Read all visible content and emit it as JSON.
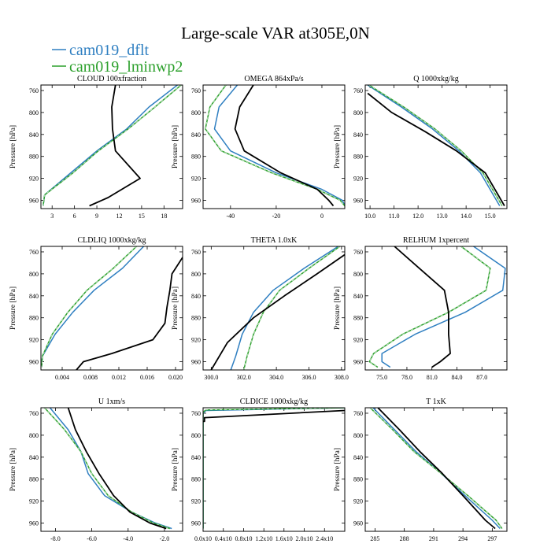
{
  "figure": {
    "title": "Large-scale VAR at305E,0N",
    "legend": [
      {
        "name": "cam019_dflt",
        "color": "#2f7fc1"
      },
      {
        "name": "cam019_lminwp2",
        "color": "#2ca02c"
      }
    ],
    "obs_color": "#000000"
  },
  "chart_data": [
    {
      "type": "line",
      "title": "CLOUD  100xfraction",
      "ylabel": "Pressure [hPa]",
      "xlim": [
        1.5,
        20.5
      ],
      "xticks": [
        3,
        6,
        9,
        12,
        15,
        18
      ],
      "xtick_labels": [
        "3",
        "6",
        "9",
        "12",
        "15",
        "18"
      ],
      "series": [
        {
          "name": "cam019_dflt",
          "x": [
            19.8,
            16.0,
            13.0,
            9.0,
            5.5,
            2.0,
            1.8
          ],
          "y": [
            750,
            790,
            830,
            870,
            910,
            950,
            970
          ]
        },
        {
          "name": "cam019_lminwp2",
          "x": [
            20.3,
            16.8,
            13.2,
            9.2,
            5.8,
            2.0,
            1.8
          ],
          "y": [
            750,
            790,
            830,
            870,
            910,
            950,
            970
          ]
        },
        {
          "name": "",
          "x": [
            11.5,
            11.0,
            11.1,
            11.5,
            14.8,
            10.5,
            8.0
          ],
          "y": [
            750,
            790,
            830,
            870,
            920,
            955,
            970
          ]
        }
      ]
    },
    {
      "type": "line",
      "title": "OMEGA  864xPa/s",
      "ylabel": "Pressure [hPa]",
      "xlim": [
        -52,
        10
      ],
      "xticks": [
        -40,
        -20,
        0
      ],
      "xtick_labels": [
        "-40",
        "-20",
        "0"
      ],
      "series": [
        {
          "name": "cam019_dflt",
          "x": [
            -37,
            -45,
            -47,
            -40,
            -20,
            0,
            9,
            10
          ],
          "y": [
            750,
            790,
            830,
            870,
            910,
            940,
            960,
            970
          ]
        },
        {
          "name": "cam019_lminwp2",
          "x": [
            -42,
            -49,
            -51,
            -44,
            -22,
            -2,
            8,
            10
          ],
          "y": [
            750,
            790,
            830,
            870,
            910,
            940,
            960,
            970
          ]
        },
        {
          "name": "",
          "x": [
            -30,
            -36,
            -38,
            -34,
            -18,
            -2,
            3,
            5
          ],
          "y": [
            750,
            790,
            830,
            870,
            910,
            940,
            960,
            970
          ]
        }
      ]
    },
    {
      "type": "line",
      "title": "Q  1000xkg/kg",
      "ylabel": "Pressure [hPa]",
      "xlim": [
        9.8,
        15.7
      ],
      "xticks": [
        10.0,
        11.0,
        12.0,
        13.0,
        14.0,
        15.0
      ],
      "xtick_labels": [
        "10.0",
        "11.0",
        "12.0",
        "13.0",
        "14.0",
        "15.0"
      ],
      "series": [
        {
          "name": "cam019_dflt",
          "x": [
            9.9,
            11.3,
            12.6,
            13.7,
            14.6,
            15.4
          ],
          "y": [
            750,
            790,
            830,
            870,
            910,
            970
          ]
        },
        {
          "name": "cam019_lminwp2",
          "x": [
            9.95,
            11.4,
            12.7,
            13.8,
            14.7,
            15.5
          ],
          "y": [
            750,
            790,
            830,
            870,
            910,
            970
          ]
        },
        {
          "name": "",
          "x": [
            9.9,
            10.9,
            12.3,
            13.6,
            14.8,
            15.6
          ],
          "y": [
            765,
            800,
            835,
            870,
            910,
            970
          ]
        }
      ]
    },
    {
      "type": "line",
      "title": "CLDLIQ  1000xkg/kg",
      "ylabel": "Pressure [hPa]",
      "xlim": [
        0.001,
        0.021
      ],
      "xticks": [
        0.004,
        0.008,
        0.012,
        0.016,
        0.02
      ],
      "xtick_labels": [
        "0.004",
        "0.008",
        "0.012",
        "0.016",
        "0.020"
      ],
      "series": [
        {
          "name": "cam019_dflt",
          "x": [
            0.0155,
            0.0125,
            0.0085,
            0.0055,
            0.003,
            0.0012,
            0.0011
          ],
          "y": [
            750,
            790,
            830,
            870,
            910,
            950,
            970
          ]
        },
        {
          "name": "cam019_lminwp2",
          "x": [
            0.0145,
            0.0112,
            0.0075,
            0.0048,
            0.0026,
            0.0012,
            0.0011
          ],
          "y": [
            750,
            790,
            830,
            870,
            910,
            950,
            970
          ]
        },
        {
          "name": "",
          "x": [
            0.021,
            0.0195,
            0.0192,
            0.0188,
            0.0185,
            0.0168,
            0.011,
            0.007,
            0.006
          ],
          "y": [
            770,
            800,
            830,
            860,
            890,
            920,
            945,
            960,
            975
          ]
        }
      ]
    },
    {
      "type": "line",
      "title": "THETA  1.0xK",
      "ylabel": "Pressure [hPa]",
      "xlim": [
        299.5,
        308.2
      ],
      "xticks": [
        300.0,
        302.0,
        304.0,
        306.0,
        308.0
      ],
      "xtick_labels": [
        "300.0",
        "302.0",
        "304.0",
        "306.0",
        "308.0"
      ],
      "series": [
        {
          "name": "cam019_dflt",
          "x": [
            307.8,
            305.7,
            303.8,
            302.6,
            301.9,
            301.5,
            301.2
          ],
          "y": [
            750,
            790,
            830,
            870,
            910,
            950,
            975
          ]
        },
        {
          "name": "cam019_lminwp2",
          "x": [
            307.9,
            306.0,
            304.2,
            303.2,
            302.6,
            302.2,
            302.0
          ],
          "y": [
            750,
            790,
            830,
            870,
            910,
            950,
            975
          ]
        },
        {
          "name": "",
          "x": [
            308.2,
            306.5,
            304.5,
            302.6,
            301.0,
            300.0
          ],
          "y": [
            765,
            800,
            840,
            880,
            925,
            975
          ]
        }
      ]
    },
    {
      "type": "line",
      "title": "RELHUM  1xpercent",
      "ylabel": "Pressure [hPa]",
      "xlim": [
        73.0,
        90.0
      ],
      "xticks": [
        75.0,
        78.0,
        81.0,
        84.0,
        87.0
      ],
      "xtick_labels": [
        "75.0",
        "78.0",
        "81.0",
        "84.0",
        "87.0"
      ],
      "series": [
        {
          "name": "cam019_dflt",
          "x": [
            86.0,
            89.8,
            89.5,
            85.0,
            79.0,
            75.0,
            75.0,
            76.0
          ],
          "y": [
            750,
            790,
            830,
            870,
            910,
            945,
            960,
            970
          ]
        },
        {
          "name": "cam019_lminwp2",
          "x": [
            84.5,
            88.0,
            87.5,
            83.0,
            77.5,
            74.0,
            73.5,
            74.5
          ],
          "y": [
            750,
            790,
            830,
            870,
            910,
            945,
            960,
            970
          ]
        },
        {
          "name": "",
          "x": [
            76.5,
            79.5,
            82.5,
            83.0,
            83.0,
            83.2,
            82.0,
            81.0
          ],
          "y": [
            750,
            790,
            830,
            870,
            910,
            945,
            960,
            970
          ]
        }
      ]
    },
    {
      "type": "line",
      "title": "U  1xm/s",
      "ylabel": "Pressure [hPa]",
      "xlim": [
        -8.8,
        -1.0
      ],
      "xticks": [
        -8.0,
        -6.0,
        -4.0,
        -2.0
      ],
      "xtick_labels": [
        "-8.0",
        "-6.0",
        "-4.0",
        "-2.0"
      ],
      "series": [
        {
          "name": "cam019_dflt",
          "x": [
            -8.3,
            -7.3,
            -6.6,
            -6.2,
            -5.3,
            -3.8,
            -2.5,
            -1.6
          ],
          "y": [
            750,
            790,
            830,
            870,
            910,
            940,
            960,
            970
          ]
        },
        {
          "name": "cam019_lminwp2",
          "x": [
            -8.6,
            -7.5,
            -6.6,
            -6.0,
            -5.1,
            -3.8,
            -2.6,
            -1.7
          ],
          "y": [
            750,
            790,
            830,
            870,
            910,
            940,
            960,
            970
          ]
        },
        {
          "name": "",
          "x": [
            -7.3,
            -6.9,
            -6.3,
            -5.6,
            -4.8,
            -3.9,
            -2.8,
            -1.9
          ],
          "y": [
            750,
            790,
            830,
            870,
            910,
            940,
            960,
            970
          ]
        }
      ]
    },
    {
      "type": "line",
      "title": "CLDICE  1000xkg/kg",
      "ylabel": "Pressure [hPa]",
      "xlim": [
        0,
        1.0
      ],
      "xticks": [
        0.0,
        0.143,
        0.286,
        0.429,
        0.571,
        0.714,
        0.857
      ],
      "xtick_labels": [
        "0.0x10",
        "0.4x10",
        "0.8x10",
        "1.2x10",
        "1.6x10",
        "2.0x10",
        "2.4x10"
      ],
      "series": [
        {
          "name": "cam019_dflt",
          "x": [
            1.0,
            0.02,
            0.0,
            0.0,
            0.0
          ],
          "y": [
            750,
            755,
            760,
            800,
            970
          ]
        },
        {
          "name": "cam019_lminwp2",
          "x": [
            1.0,
            0.02,
            0.0,
            0.0,
            0.0
          ],
          "y": [
            750,
            754,
            758,
            800,
            970
          ]
        },
        {
          "name": "",
          "x": [
            1.0,
            0.01,
            0.01,
            0.0
          ],
          "y": [
            755,
            768,
            775,
            775
          ]
        }
      ]
    },
    {
      "type": "line",
      "title": "T  1xK",
      "ylabel": "Pressure [hPa]",
      "xlim": [
        284,
        298.5
      ],
      "xticks": [
        285,
        288,
        291,
        294,
        297
      ],
      "xtick_labels": [
        "285",
        "288",
        "291",
        "294",
        "297"
      ],
      "series": [
        {
          "name": "cam019_dflt",
          "x": [
            284.8,
            287.0,
            289.2,
            291.8,
            294.2,
            297.0,
            297.8
          ],
          "y": [
            750,
            790,
            830,
            870,
            910,
            955,
            970
          ]
        },
        {
          "name": "cam019_lminwp2",
          "x": [
            284.5,
            286.8,
            289.0,
            291.8,
            294.5,
            297.4,
            298.0
          ],
          "y": [
            750,
            790,
            830,
            870,
            910,
            955,
            970
          ]
        },
        {
          "name": "",
          "x": [
            285.3,
            287.5,
            289.6,
            291.9,
            294.0,
            296.3,
            297.3
          ],
          "y": [
            750,
            790,
            830,
            870,
            910,
            955,
            970
          ]
        }
      ]
    }
  ]
}
